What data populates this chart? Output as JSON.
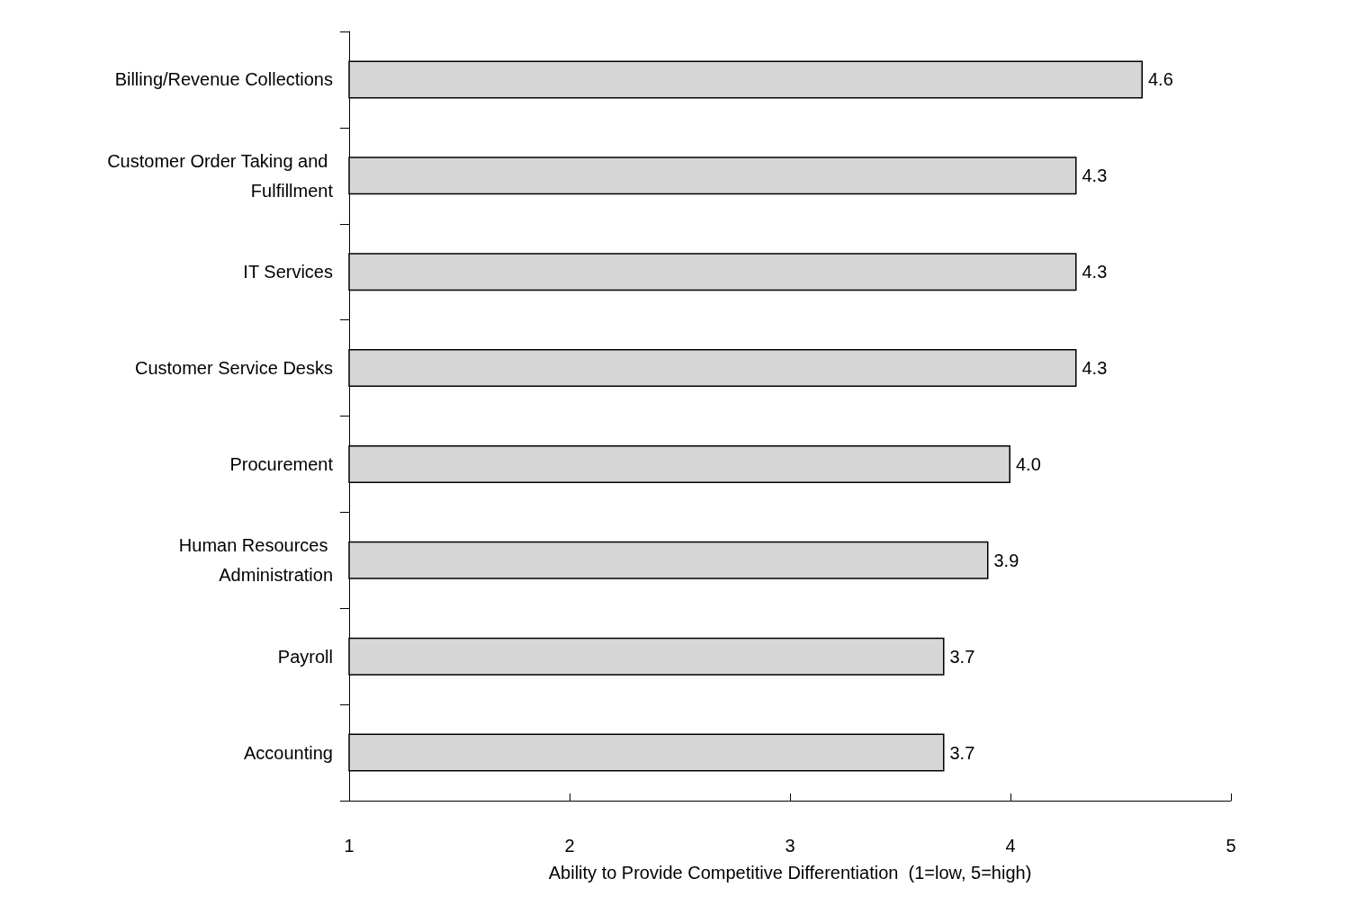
{
  "chart_data": {
    "type": "bar",
    "orientation": "horizontal",
    "categories": [
      "Billing/Revenue Collections",
      "Customer Order Taking and Fulfillment",
      "IT Services",
      "Customer Service Desks",
      "Procurement",
      "Human Resources Administration",
      "Payroll",
      "Accounting"
    ],
    "values": [
      4.6,
      4.3,
      4.3,
      4.3,
      4.0,
      3.9,
      3.7,
      3.7
    ],
    "value_labels": [
      "4.6",
      "4.3",
      "4.3",
      "4.3",
      "4.0",
      "3.9",
      "3.7",
      "3.7"
    ],
    "color": "#d6d6d6",
    "xlim": [
      1,
      5
    ],
    "xticks": [
      1,
      2,
      3,
      4,
      5
    ],
    "xlabel": "Ability to Provide Competitive Differentiation  (1=low, 5=high)",
    "grid": false
  }
}
